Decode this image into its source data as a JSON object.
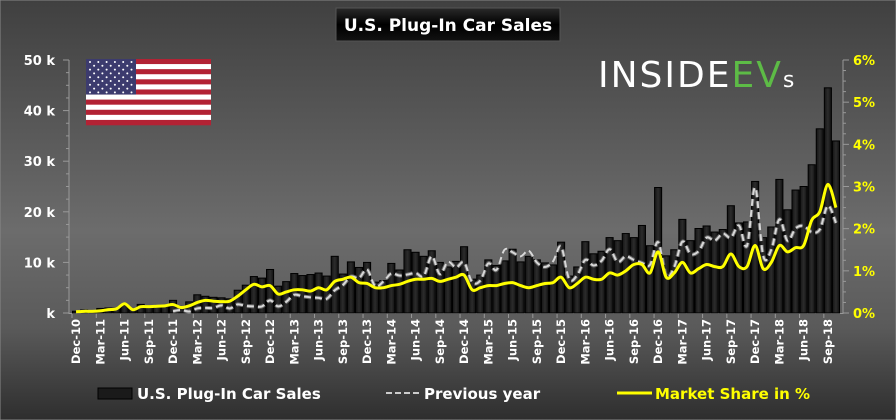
{
  "chart_data": {
    "type": "bar",
    "title": "U.S. Plug-In Car Sales",
    "logo_text": "INSIDEEVs",
    "colors": {
      "bars": "#1a1a1a",
      "previous_year": "#cccccc",
      "market_share": "#ffff00",
      "logo_green": "#5dbb46"
    },
    "y_left": {
      "ylim": [
        0,
        50
      ],
      "unit": "k",
      "ticks": [
        "k",
        "10 k",
        "20 k",
        "30 k",
        "40 k",
        "50 k"
      ]
    },
    "y_right": {
      "ylim": [
        0,
        6
      ],
      "unit": "%",
      "ticks": [
        "0%",
        "1%",
        "2%",
        "3%",
        "4%",
        "5%",
        "6%"
      ]
    },
    "x_labels": [
      "Dec-10",
      "Mar-11",
      "Jun-11",
      "Sep-11",
      "Dec-11",
      "Mar-12",
      "Jun-12",
      "Sep-12",
      "Dec-12",
      "Mar-13",
      "Jun-13",
      "Sep-13",
      "Dec-13",
      "Mar-14",
      "Jun-14",
      "Sep-14",
      "Dec-14",
      "Mar-15",
      "Jun-15",
      "Sep-15",
      "Dec-15",
      "Mar-16",
      "Jun-16",
      "Sep-16",
      "Dec-16",
      "Mar-17",
      "Jun-17",
      "Sep-17",
      "Dec-17",
      "Mar-18",
      "Jun-18",
      "Sep-18"
    ],
    "first_month": "Dec-10",
    "series": [
      {
        "name": "U.S. Plug-In Car Sales",
        "unit": "thousand units",
        "values": [
          0.35,
          0.6,
          0.3,
          0.9,
          1.0,
          1.0,
          1.5,
          0.9,
          1.7,
          1.4,
          1.3,
          1.3,
          2.5,
          1.3,
          2.2,
          3.6,
          3.3,
          3.1,
          3.0,
          2.8,
          4.5,
          5.5,
          7.2,
          6.9,
          8.6,
          5.3,
          6.2,
          7.8,
          7.4,
          7.6,
          7.9,
          7.3,
          11.2,
          7.7,
          10.1,
          9.0,
          10.0,
          6.1,
          6.4,
          9.8,
          8.5,
          12.5,
          12.0,
          11.2,
          12.3,
          10.0,
          9.1,
          10.2,
          13.1,
          6.7,
          7.5,
          10.5,
          9.4,
          10.3,
          12.6,
          10.1,
          11.2,
          10.5,
          9.9,
          9.5,
          14.0,
          7.3,
          9.1,
          14.1,
          11.7,
          12.2,
          14.9,
          14.3,
          15.7,
          14.9,
          17.3,
          13.3,
          24.8,
          11.3,
          12.5,
          18.5,
          14.3,
          16.7,
          17.2,
          16.0,
          16.5,
          21.2,
          17.8,
          18.0,
          26.0,
          14.9,
          17.0,
          26.4,
          20.4,
          24.3,
          25.0,
          29.3,
          36.4,
          44.5,
          34.0
        ]
      },
      {
        "name": "Previous year",
        "unit": "thousand units",
        "derived": "sales shifted by 12 months"
      },
      {
        "name": "Market Share in %",
        "unit": "%",
        "values": [
          0.03,
          0.04,
          0.04,
          0.05,
          0.08,
          0.1,
          0.22,
          0.08,
          0.15,
          0.15,
          0.16,
          0.17,
          0.2,
          0.13,
          0.17,
          0.25,
          0.3,
          0.28,
          0.27,
          0.28,
          0.4,
          0.55,
          0.68,
          0.62,
          0.65,
          0.45,
          0.5,
          0.55,
          0.55,
          0.52,
          0.6,
          0.55,
          0.75,
          0.8,
          0.85,
          0.72,
          0.7,
          0.6,
          0.6,
          0.65,
          0.68,
          0.75,
          0.8,
          0.8,
          0.82,
          0.75,
          0.8,
          0.85,
          0.9,
          0.55,
          0.6,
          0.65,
          0.65,
          0.7,
          0.72,
          0.65,
          0.6,
          0.65,
          0.7,
          0.72,
          0.85,
          0.6,
          0.7,
          0.85,
          0.8,
          0.8,
          0.95,
          0.9,
          1.0,
          1.15,
          1.15,
          0.95,
          1.45,
          0.85,
          0.95,
          1.2,
          0.95,
          1.05,
          1.15,
          1.1,
          1.1,
          1.4,
          1.1,
          1.1,
          1.6,
          1.05,
          1.2,
          1.6,
          1.45,
          1.55,
          1.6,
          2.2,
          2.4,
          3.05,
          2.5
        ]
      }
    ],
    "legend": {
      "placement": "bottom",
      "items": [
        "U.S. Plug-In Car Sales",
        "Previous year",
        "Market Share in %"
      ]
    },
    "grid": false
  }
}
